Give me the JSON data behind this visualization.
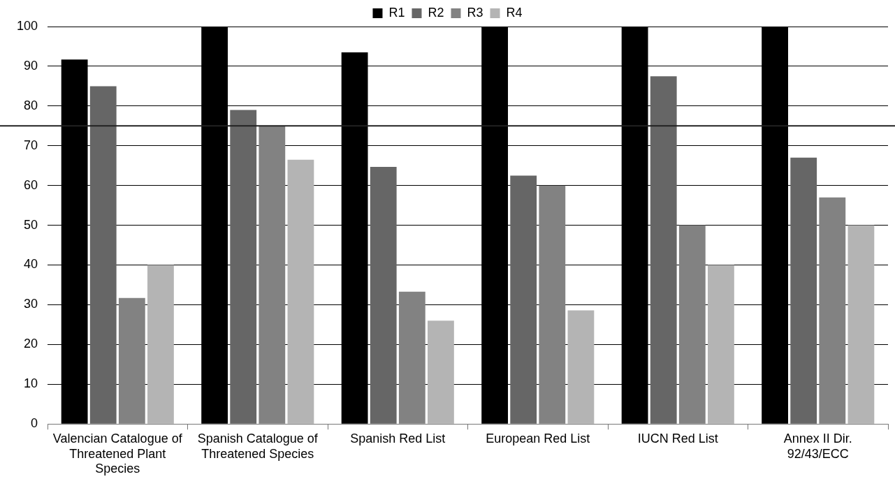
{
  "chart_data": {
    "type": "bar",
    "categories": [
      "Valencian Catalogue of Threatened Plant Species",
      "Spanish Catalogue of Threatened Species",
      "Spanish Red List",
      "European Red List",
      "IUCN Red List",
      "Annex II Dir. 92/43/ECC"
    ],
    "series": [
      {
        "name": "R1",
        "color": "#000000",
        "values": [
          91.7,
          100,
          93.5,
          100,
          100,
          100
        ]
      },
      {
        "name": "R2",
        "color": "#666666",
        "values": [
          85,
          79,
          64.7,
          62.5,
          87.5,
          67
        ]
      },
      {
        "name": "R3",
        "color": "#828282",
        "values": [
          31.7,
          75,
          33.3,
          60,
          50,
          57
        ]
      },
      {
        "name": "R4",
        "color": "#b4b4b4",
        "values": [
          40,
          66.5,
          26,
          28.6,
          40,
          50
        ]
      }
    ],
    "ylim": [
      0,
      100
    ],
    "yticks": [
      0,
      10,
      20,
      30,
      40,
      50,
      60,
      70,
      80,
      90,
      100
    ],
    "grid": "y",
    "legend": "top",
    "ref_lines": [
      {
        "axis": "y",
        "value": 75,
        "color": "#222222"
      }
    ]
  }
}
